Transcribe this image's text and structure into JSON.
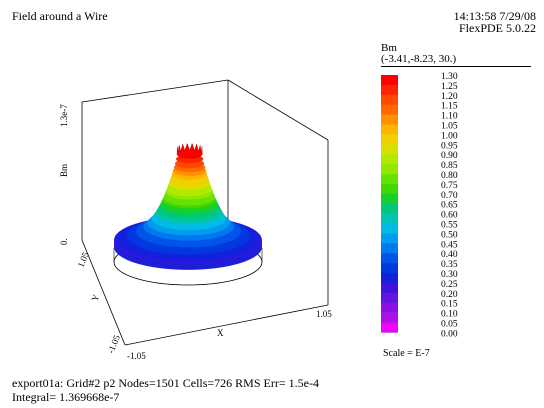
{
  "header": {
    "title": "Field around a Wire",
    "timestamp": "14:13:58 7/29/08",
    "program": "FlexPDE 5.0.22"
  },
  "legend": {
    "variable": "Bm",
    "view_point": "(-3.41,-8.23, 30.)",
    "scale_label": "Scale = E-7"
  },
  "footer": {
    "line1": "export01a:  Grid#2  p2  Nodes=1501 Cells=726 RMS Err= 1.5e-4",
    "line2": "Integral=  1.369668e-7"
  },
  "chart_data": {
    "type": "surface",
    "title": "Field around a Wire",
    "zlabel": "Bm",
    "xlabel": "X",
    "ylabel": "Y",
    "z_ticks": [
      "0.",
      "1.3e-7"
    ],
    "x_ticks": [
      "-1.05",
      "1.05"
    ],
    "y_ticks": [
      "1.05",
      "-1.05"
    ],
    "xlim": [
      -1.05,
      1.05
    ],
    "ylim": [
      -1.05,
      1.05
    ],
    "zlim": [
      0,
      1.3e-07
    ],
    "scale_exponent": "E-7",
    "legend_levels": [
      "1.30",
      "1.25",
      "1.20",
      "1.15",
      "1.10",
      "1.05",
      "1.00",
      "0.95",
      "0.90",
      "0.85",
      "0.80",
      "0.75",
      "0.70",
      "0.65",
      "0.60",
      "0.55",
      "0.50",
      "0.45",
      "0.40",
      "0.35",
      "0.30",
      "0.25",
      "0.20",
      "0.15",
      "0.10",
      "0.05",
      "0.00"
    ],
    "legend_colors": [
      "#ff0000",
      "#ff2400",
      "#ff4800",
      "#ff6a00",
      "#ff9000",
      "#ffb400",
      "#f0d000",
      "#d8e000",
      "#b4e800",
      "#90e800",
      "#68e000",
      "#40d800",
      "#18d028",
      "#00c878",
      "#00c4b4",
      "#00bce4",
      "#009cf0",
      "#0078f0",
      "#0054e8",
      "#0038e0",
      "#1420dc",
      "#3c14dc",
      "#6414e0",
      "#8c10e4",
      "#b010e8",
      "#d810ec",
      "#ff00ff"
    ],
    "surface_profile": {
      "r": [
        1.0,
        0.9,
        0.8,
        0.7,
        0.6,
        0.5,
        0.45,
        0.4,
        0.35,
        0.3,
        0.25,
        0.2,
        0.17
      ],
      "z": [
        0.27,
        0.3,
        0.34,
        0.38,
        0.44,
        0.53,
        0.6,
        0.68,
        0.78,
        0.9,
        1.03,
        1.18,
        1.3
      ]
    }
  }
}
